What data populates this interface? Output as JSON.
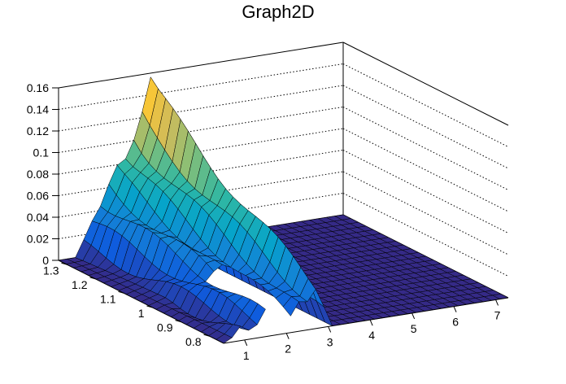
{
  "chart_data": {
    "type": "surface",
    "title": "Graph2D",
    "xlabel": "",
    "ylabel": "",
    "zlabel": "",
    "xlim": [
      0.5,
      7.3
    ],
    "ylim": [
      0.75,
      1.33
    ],
    "zlim": [
      0,
      0.16
    ],
    "x_ticks": [
      "1",
      "2",
      "3",
      "4",
      "5",
      "6",
      "7"
    ],
    "y_ticks": [
      "1.3",
      "1.2",
      "1.1",
      "1",
      "0.9",
      "0.8"
    ],
    "z_ticks": [
      "0",
      "0.02",
      "0.04",
      "0.06",
      "0.08",
      "0.1",
      "0.12",
      "0.14",
      "0.16"
    ],
    "grid": true,
    "palette": [
      "#352a87",
      "#0f5cdd",
      "#1481d6",
      "#06a4ca",
      "#2eb7a4",
      "#87bf77",
      "#d1bb59",
      "#fec832",
      "#f9fb0e"
    ],
    "surface_summary": {
      "peak": {
        "x": 2.6,
        "y": 1.3,
        "z": 0.158
      },
      "ridge": [
        {
          "x": 1.0,
          "z_near_edge": 0.01,
          "z_far_edge": 0.0
        },
        {
          "x": 1.5,
          "z_near_edge": 0.02,
          "z_far_edge": 0.05
        },
        {
          "x": 2.0,
          "z_near_edge": 0.01,
          "z_far_edge": 0.08
        },
        {
          "x": 2.5,
          "z_near_edge": 0.03,
          "z_far_edge": 0.12
        },
        {
          "x": 2.7,
          "z_near_edge": 0.04,
          "z_far_edge": 0.155
        },
        {
          "x": 3.0,
          "z_near_edge": 0.0,
          "z_far_edge": 0.0
        }
      ],
      "flat_region": {
        "x_from": 3.0,
        "x_to": 7.3,
        "z": 0.0
      },
      "missing_region": {
        "x_from": 1.55,
        "x_to": 2.05,
        "y_from": 0.75,
        "y_to": 0.95
      }
    }
  }
}
